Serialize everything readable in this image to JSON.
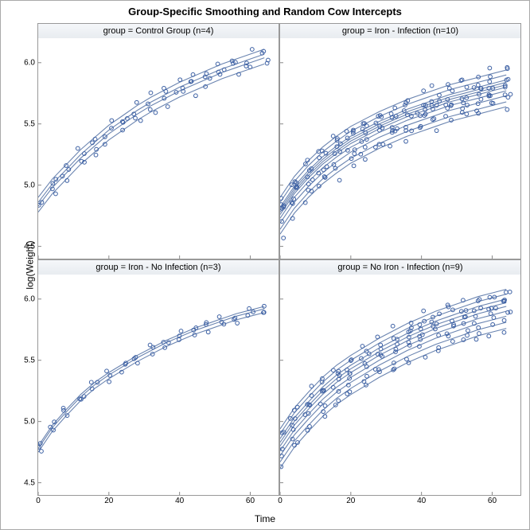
{
  "title": "Group-Specific Smoothing and Random Cow Intercepts",
  "xlabel": "Time",
  "ylabel": "log(Weight)",
  "xlim": [
    0,
    68
  ],
  "ylim": [
    4.4,
    6.2
  ],
  "xticks": [
    0,
    20,
    40,
    60
  ],
  "yticks": [
    4.5,
    5.0,
    5.5,
    6.0
  ],
  "colors": {
    "point_stroke": "#3b5fa3",
    "point_fill": "none",
    "line": "#6a84b0",
    "border": "#999999",
    "header_bg_top": "#f5f7fa",
    "header_bg_bot": "#e8ecf0",
    "bg": "#ffffff"
  },
  "marker": {
    "radius": 2.4,
    "stroke_width": 1
  },
  "line_width": 1.1,
  "panels": [
    {
      "id": 0,
      "title": "group = Control Group (n=4)",
      "ncurves": 4,
      "offsets": [
        0.07,
        0.03,
        0.0,
        -0.05
      ],
      "base_curve": [
        [
          0,
          4.83
        ],
        [
          4,
          4.98
        ],
        [
          8,
          5.1
        ],
        [
          12,
          5.22
        ],
        [
          16,
          5.32
        ],
        [
          20,
          5.42
        ],
        [
          24,
          5.5
        ],
        [
          28,
          5.58
        ],
        [
          32,
          5.65
        ],
        [
          36,
          5.71
        ],
        [
          40,
          5.77
        ],
        [
          44,
          5.82
        ],
        [
          48,
          5.87
        ],
        [
          52,
          5.92
        ],
        [
          56,
          5.96
        ],
        [
          60,
          6.0
        ],
        [
          64,
          6.04
        ]
      ],
      "jitter_y": 0.04,
      "jitter_x": 1.2,
      "time_points": [
        0,
        4,
        8,
        12,
        16,
        20,
        24,
        28,
        32,
        36,
        40,
        44,
        48,
        52,
        56,
        60,
        64
      ]
    },
    {
      "id": 1,
      "title": "group = Iron - Infection (n=10)",
      "ncurves": 10,
      "offsets": [
        0.12,
        0.08,
        0.04,
        0.02,
        0.0,
        -0.02,
        -0.05,
        -0.09,
        -0.14,
        -0.18
      ],
      "base_curve": [
        [
          0,
          4.78
        ],
        [
          4,
          4.95
        ],
        [
          8,
          5.08
        ],
        [
          12,
          5.19
        ],
        [
          16,
          5.28
        ],
        [
          20,
          5.36
        ],
        [
          24,
          5.42
        ],
        [
          28,
          5.48
        ],
        [
          32,
          5.53
        ],
        [
          36,
          5.58
        ],
        [
          40,
          5.62
        ],
        [
          44,
          5.66
        ],
        [
          48,
          5.7
        ],
        [
          52,
          5.73
        ],
        [
          56,
          5.76
        ],
        [
          60,
          5.79
        ],
        [
          64,
          5.82
        ]
      ],
      "jitter_y": 0.06,
      "jitter_x": 1.2,
      "time_points": [
        0,
        4,
        8,
        12,
        16,
        20,
        24,
        28,
        32,
        36,
        40,
        44,
        48,
        52,
        56,
        60,
        64
      ]
    },
    {
      "id": 2,
      "title": "group = Iron - No Infection (n=3)",
      "ncurves": 3,
      "offsets": [
        0.02,
        0.0,
        -0.03
      ],
      "base_curve": [
        [
          0,
          4.78
        ],
        [
          4,
          4.95
        ],
        [
          8,
          5.08
        ],
        [
          12,
          5.2
        ],
        [
          16,
          5.3
        ],
        [
          20,
          5.38
        ],
        [
          24,
          5.45
        ],
        [
          28,
          5.52
        ],
        [
          32,
          5.58
        ],
        [
          36,
          5.64
        ],
        [
          40,
          5.69
        ],
        [
          44,
          5.74
        ],
        [
          48,
          5.78
        ],
        [
          52,
          5.82
        ],
        [
          56,
          5.86
        ],
        [
          60,
          5.89
        ],
        [
          64,
          5.92
        ]
      ],
      "jitter_y": 0.035,
      "jitter_x": 1.0,
      "time_points": [
        0,
        4,
        8,
        12,
        16,
        20,
        24,
        28,
        32,
        36,
        40,
        44,
        48,
        52,
        56,
        60,
        64
      ]
    },
    {
      "id": 3,
      "title": "group = No Iron - Infection (n=9)",
      "ncurves": 9,
      "offsets": [
        0.14,
        0.1,
        0.06,
        0.03,
        0.0,
        -0.04,
        -0.08,
        -0.13,
        -0.18
      ],
      "base_curve": [
        [
          0,
          4.8
        ],
        [
          4,
          4.97
        ],
        [
          8,
          5.1
        ],
        [
          12,
          5.22
        ],
        [
          16,
          5.32
        ],
        [
          20,
          5.4
        ],
        [
          24,
          5.47
        ],
        [
          28,
          5.54
        ],
        [
          32,
          5.6
        ],
        [
          36,
          5.66
        ],
        [
          40,
          5.71
        ],
        [
          44,
          5.76
        ],
        [
          48,
          5.8
        ],
        [
          52,
          5.84
        ],
        [
          56,
          5.88
        ],
        [
          60,
          5.91
        ],
        [
          64,
          5.94
        ]
      ],
      "jitter_y": 0.055,
      "jitter_x": 1.2,
      "time_points": [
        0,
        4,
        8,
        12,
        16,
        20,
        24,
        28,
        32,
        36,
        40,
        44,
        48,
        52,
        56,
        60,
        64
      ]
    }
  ]
}
